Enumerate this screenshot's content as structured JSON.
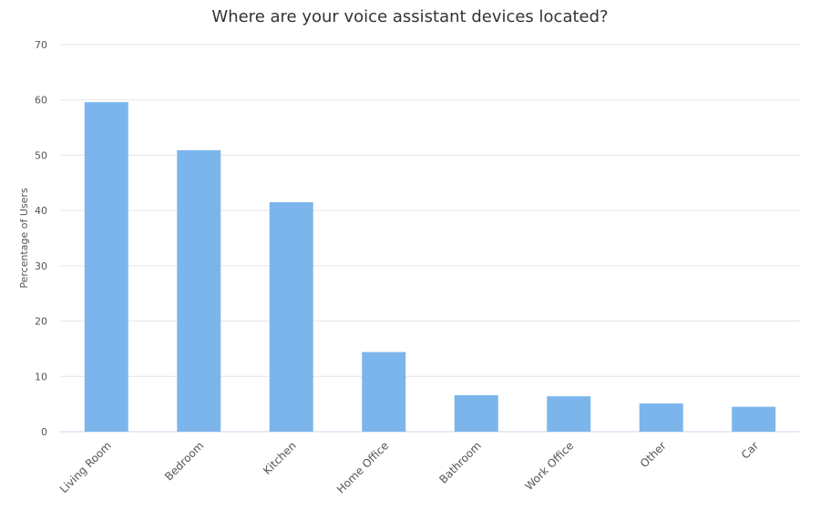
{
  "chart_data": {
    "type": "bar",
    "title": "Where are your voice assistant devices located?",
    "xlabel": "",
    "ylabel": "Percentage of Users",
    "ylim": [
      0,
      70
    ],
    "yticks": [
      0,
      10,
      20,
      30,
      40,
      50,
      60,
      70
    ],
    "categories": [
      "Living Room",
      "Bedroom",
      "Kitchen",
      "Home Office",
      "Bathroom",
      "Work Office",
      "Other",
      "Car"
    ],
    "values": [
      59.6,
      50.9,
      41.5,
      14.4,
      6.6,
      6.4,
      5.1,
      4.5
    ],
    "grid": true,
    "legend": "none",
    "colors": {
      "bar": "#7cb5ec",
      "grid": "#e6e6e6",
      "axis": "#ccd6eb"
    }
  }
}
